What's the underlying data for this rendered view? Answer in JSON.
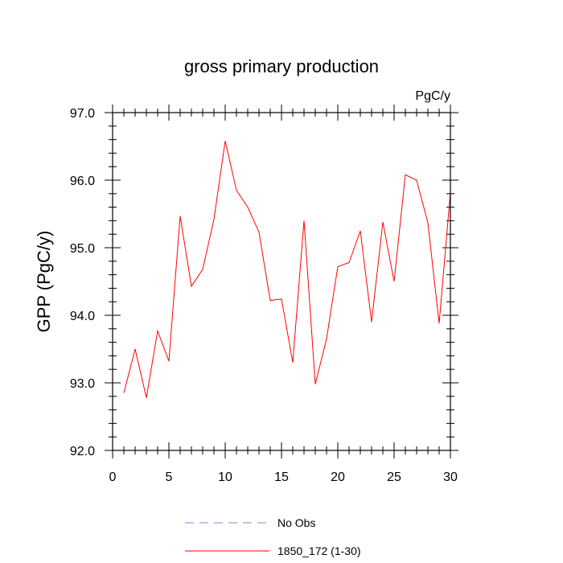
{
  "chart_data": {
    "type": "line",
    "title": "gross primary production",
    "units": "PgC/y",
    "ylabel": "GPP  (PgC/y)",
    "xlabel": "",
    "xlim": [
      0,
      30
    ],
    "ylim": [
      92.0,
      97.0
    ],
    "x_major_ticks": [
      0,
      5,
      10,
      15,
      20,
      25,
      30
    ],
    "x_tick_labels": [
      "0",
      "5",
      "10",
      "15",
      "20",
      "25",
      "30"
    ],
    "y_major_ticks": [
      92.0,
      93.0,
      94.0,
      95.0,
      96.0,
      97.0
    ],
    "y_tick_labels": [
      "92.0",
      "93.0",
      "94.0",
      "95.0",
      "96.0",
      "97.0"
    ],
    "grid": false,
    "legend_position": "bottom-center",
    "series": [
      {
        "name": "1850_172 (1-30)",
        "color": "#ff0000",
        "dash": "solid",
        "x": [
          1,
          2,
          3,
          4,
          5,
          6,
          7,
          8,
          9,
          10,
          11,
          12,
          13,
          14,
          15,
          16,
          17,
          18,
          19,
          20,
          21,
          22,
          23,
          24,
          25,
          26,
          27,
          28,
          29,
          30
        ],
        "values": [
          92.85,
          93.5,
          92.78,
          93.77,
          93.32,
          95.47,
          94.43,
          94.68,
          95.42,
          96.58,
          95.85,
          95.6,
          95.23,
          94.22,
          94.24,
          93.3,
          95.4,
          92.98,
          93.65,
          94.72,
          94.78,
          95.25,
          93.9,
          95.38,
          94.5,
          96.08,
          96.0,
          95.37,
          93.88,
          95.82
        ]
      },
      {
        "name": "No Obs",
        "color": "#8080ff",
        "dash": "dashed",
        "x": [],
        "values": []
      }
    ]
  }
}
